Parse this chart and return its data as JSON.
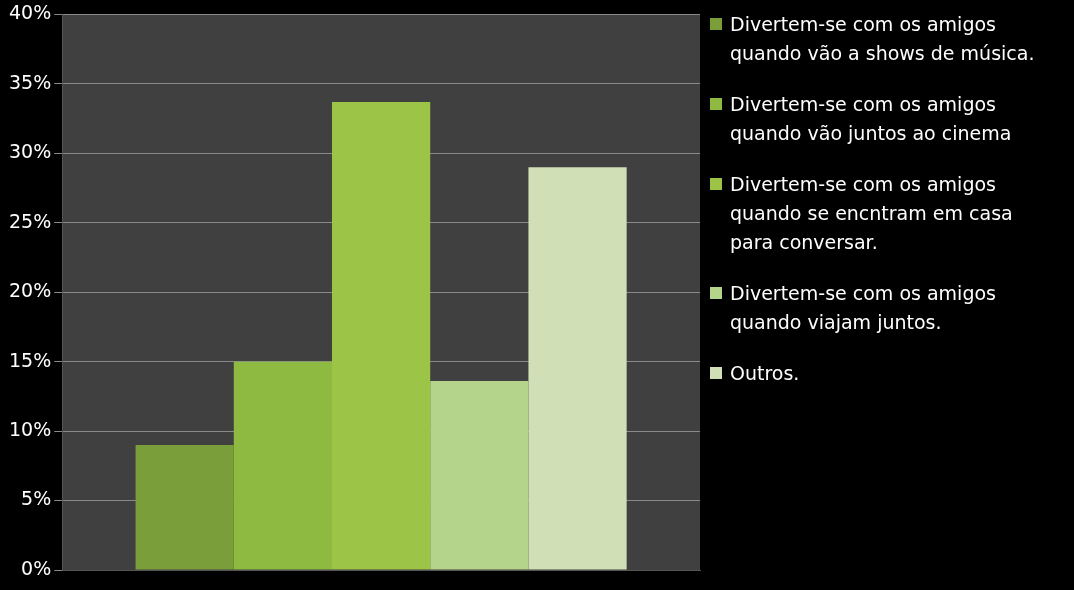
{
  "chart_data": {
    "type": "bar",
    "categories": [
      null
    ],
    "series": [
      {
        "name": "Divertem-se com os amigos quando vão a shows de música.",
        "color": "#7a9e3a",
        "values": [
          9
        ]
      },
      {
        "name": "Divertem-se com os amigos quando vão juntos ao cinema",
        "color": "#8fba42",
        "values": [
          15
        ]
      },
      {
        "name": "Divertem-se com os amigos quando se encntram em casa para conversar.",
        "color": "#9cc446",
        "values": [
          33.7
        ]
      },
      {
        "name": "Divertem-se com os amigos quando viajam juntos.",
        "color": "#b3d48a",
        "values": [
          13.6
        ]
      },
      {
        "name": "Outros.",
        "color": "#d0dfb5",
        "values": [
          29
        ]
      }
    ],
    "ylim": [
      0,
      40
    ],
    "yticks": [
      {
        "value": 0,
        "label": "0%"
      },
      {
        "value": 5,
        "label": "5%"
      },
      {
        "value": 10,
        "label": "10%"
      },
      {
        "value": 15,
        "label": "15%"
      },
      {
        "value": 20,
        "label": "20%"
      },
      {
        "value": 25,
        "label": "25%"
      },
      {
        "value": 30,
        "label": "30%"
      },
      {
        "value": 35,
        "label": "35%"
      },
      {
        "value": 40,
        "label": "40%"
      }
    ],
    "grid": "y",
    "legend": "right",
    "tick_labels": "y"
  }
}
